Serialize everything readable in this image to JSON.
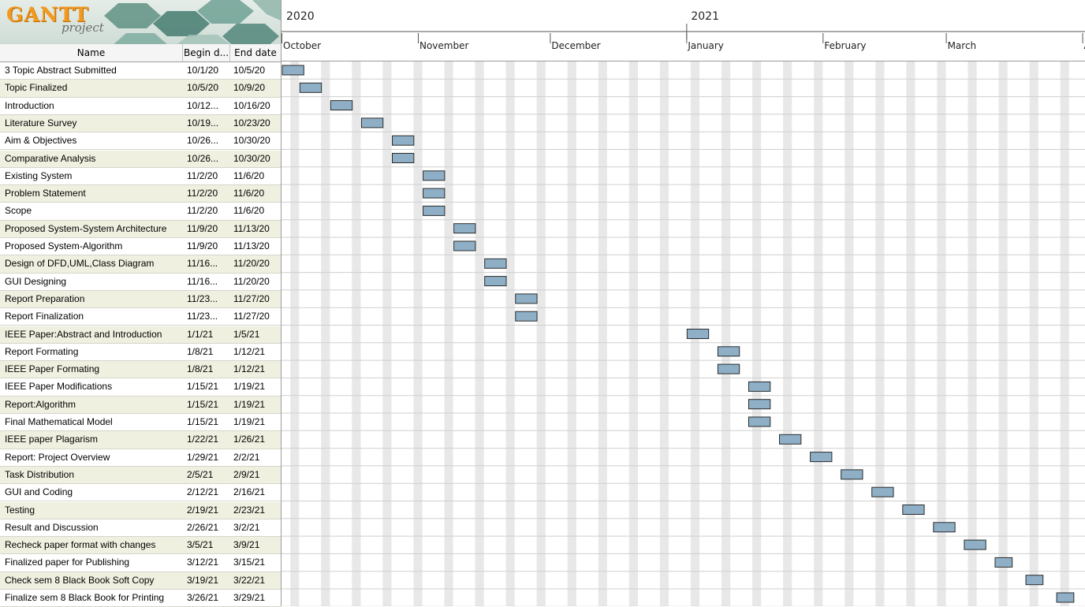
{
  "app": {
    "logo_text": "GANTT",
    "logo_sub": "project"
  },
  "columns": {
    "name": "Name",
    "begin": "Begin d...",
    "end": "End date"
  },
  "timeline": {
    "years": [
      {
        "label": "2020",
        "date": "2020-10-01"
      },
      {
        "label": "2021",
        "date": "2021-01-01"
      }
    ],
    "months": [
      {
        "label": "October",
        "date": "2020-10-01"
      },
      {
        "label": "November",
        "date": "2020-11-01"
      },
      {
        "label": "December",
        "date": "2020-12-01"
      },
      {
        "label": "January",
        "date": "2021-01-01"
      },
      {
        "label": "February",
        "date": "2021-02-01"
      },
      {
        "label": "March",
        "date": "2021-03-01"
      },
      {
        "label": "A",
        "date": "2021-04-01"
      }
    ]
  },
  "colors": {
    "bar_fill": "#8eafc6",
    "bar_border": "#2b2b2b",
    "weekend_stripe": "#e8e8e8",
    "row_alt": "#f0f0e1"
  },
  "tasks": [
    {
      "name": "3 Topic Abstract Submitted",
      "begin": "10/1/20",
      "end": "10/5/20",
      "start_date": "2020-10-01",
      "end_date": "2020-10-05"
    },
    {
      "name": "Topic Finalized",
      "begin": "10/5/20",
      "end": "10/9/20",
      "start_date": "2020-10-05",
      "end_date": "2020-10-09"
    },
    {
      "name": "Introduction",
      "begin": "10/12...",
      "end": "10/16/20",
      "start_date": "2020-10-12",
      "end_date": "2020-10-16"
    },
    {
      "name": "Literature Survey",
      "begin": "10/19...",
      "end": "10/23/20",
      "start_date": "2020-10-19",
      "end_date": "2020-10-23"
    },
    {
      "name": "Aim & Objectives",
      "begin": "10/26...",
      "end": "10/30/20",
      "start_date": "2020-10-26",
      "end_date": "2020-10-30"
    },
    {
      "name": "Comparative Analysis",
      "begin": "10/26...",
      "end": "10/30/20",
      "start_date": "2020-10-26",
      "end_date": "2020-10-30"
    },
    {
      "name": "Existing System",
      "begin": "11/2/20",
      "end": "11/6/20",
      "start_date": "2020-11-02",
      "end_date": "2020-11-06"
    },
    {
      "name": "Problem Statement",
      "begin": "11/2/20",
      "end": "11/6/20",
      "start_date": "2020-11-02",
      "end_date": "2020-11-06"
    },
    {
      "name": "Scope",
      "begin": "11/2/20",
      "end": "11/6/20",
      "start_date": "2020-11-02",
      "end_date": "2020-11-06"
    },
    {
      "name": "Proposed System-System Architecture",
      "begin": "11/9/20",
      "end": "11/13/20",
      "start_date": "2020-11-09",
      "end_date": "2020-11-13"
    },
    {
      "name": "Proposed System-Algorithm",
      "begin": "11/9/20",
      "end": "11/13/20",
      "start_date": "2020-11-09",
      "end_date": "2020-11-13"
    },
    {
      "name": "Design of DFD,UML,Class Diagram",
      "begin": "11/16...",
      "end": "11/20/20",
      "start_date": "2020-11-16",
      "end_date": "2020-11-20"
    },
    {
      "name": "GUI Designing",
      "begin": "11/16...",
      "end": "11/20/20",
      "start_date": "2020-11-16",
      "end_date": "2020-11-20"
    },
    {
      "name": "Report Preparation",
      "begin": "11/23...",
      "end": "11/27/20",
      "start_date": "2020-11-23",
      "end_date": "2020-11-27"
    },
    {
      "name": "Report Finalization",
      "begin": "11/23...",
      "end": "11/27/20",
      "start_date": "2020-11-23",
      "end_date": "2020-11-27"
    },
    {
      "name": "IEEE Paper:Abstract and Introduction",
      "begin": "1/1/21",
      "end": "1/5/21",
      "start_date": "2021-01-01",
      "end_date": "2021-01-05"
    },
    {
      "name": "Report Formating",
      "begin": "1/8/21",
      "end": "1/12/21",
      "start_date": "2021-01-08",
      "end_date": "2021-01-12"
    },
    {
      "name": "IEEE Paper Formating",
      "begin": "1/8/21",
      "end": "1/12/21",
      "start_date": "2021-01-08",
      "end_date": "2021-01-12"
    },
    {
      "name": "IEEE Paper Modifications",
      "begin": "1/15/21",
      "end": "1/19/21",
      "start_date": "2021-01-15",
      "end_date": "2021-01-19"
    },
    {
      "name": "Report:Algorithm",
      "begin": "1/15/21",
      "end": "1/19/21",
      "start_date": "2021-01-15",
      "end_date": "2021-01-19"
    },
    {
      "name": "Final Mathematical Model",
      "begin": "1/15/21",
      "end": "1/19/21",
      "start_date": "2021-01-15",
      "end_date": "2021-01-19"
    },
    {
      "name": "IEEE paper Plagarism",
      "begin": "1/22/21",
      "end": "1/26/21",
      "start_date": "2021-01-22",
      "end_date": "2021-01-26"
    },
    {
      "name": "Report: Project Overview",
      "begin": "1/29/21",
      "end": "2/2/21",
      "start_date": "2021-01-29",
      "end_date": "2021-02-02"
    },
    {
      "name": "Task Distribution",
      "begin": "2/5/21",
      "end": "2/9/21",
      "start_date": "2021-02-05",
      "end_date": "2021-02-09"
    },
    {
      "name": "GUI and Coding",
      "begin": "2/12/21",
      "end": "2/16/21",
      "start_date": "2021-02-12",
      "end_date": "2021-02-16"
    },
    {
      "name": "Testing",
      "begin": "2/19/21",
      "end": "2/23/21",
      "start_date": "2021-02-19",
      "end_date": "2021-02-23"
    },
    {
      "name": "Result and Discussion",
      "begin": "2/26/21",
      "end": "3/2/21",
      "start_date": "2021-02-26",
      "end_date": "2021-03-02"
    },
    {
      "name": "Recheck paper format with changes",
      "begin": "3/5/21",
      "end": "3/9/21",
      "start_date": "2021-03-05",
      "end_date": "2021-03-09"
    },
    {
      "name": "Finalized paper for Publishing",
      "begin": "3/12/21",
      "end": "3/15/21",
      "start_date": "2021-03-12",
      "end_date": "2021-03-15"
    },
    {
      "name": "Check sem 8 Black Book Soft Copy",
      "begin": "3/19/21",
      "end": "3/22/21",
      "start_date": "2021-03-19",
      "end_date": "2021-03-22"
    },
    {
      "name": "Finalize sem 8 Black Book for Printing",
      "begin": "3/26/21",
      "end": "3/29/21",
      "start_date": "2021-03-26",
      "end_date": "2021-03-29"
    }
  ]
}
